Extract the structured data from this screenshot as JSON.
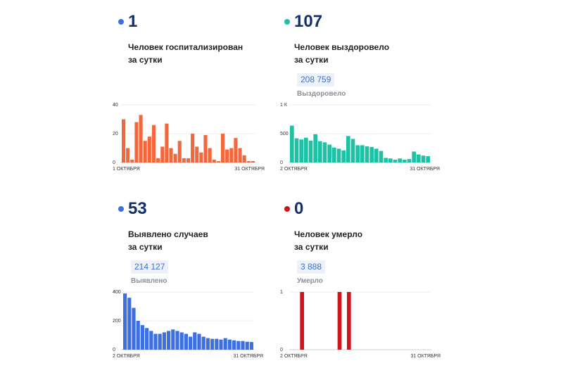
{
  "panels": [
    {
      "id": "hospitalized",
      "value": "1",
      "dot_color": "#3d6fe0",
      "line1": "Человек госпитализирован",
      "line2": "за сутки",
      "total": "",
      "total_label": ""
    },
    {
      "id": "recovered",
      "value": "107",
      "dot_color": "#1fc1a5",
      "line1": "Человек выздоровело",
      "line2": "за сутки",
      "total": "208 759",
      "total_label": "Выздоровело"
    },
    {
      "id": "cases",
      "value": "53",
      "dot_color": "#3d6fe0",
      "line1": "Выявлено случаев",
      "line2": "за сутки",
      "total": "214 127",
      "total_label": "Выявлено"
    },
    {
      "id": "deaths",
      "value": "0",
      "dot_color": "#d0141e",
      "line1": "Человек умерло",
      "line2": "за сутки",
      "total": "3 888",
      "total_label": "Умерло"
    }
  ],
  "chart_data": [
    {
      "type": "bar",
      "color": "#f2683c",
      "ylim": [
        0,
        40
      ],
      "yticks": [
        {
          "v": 0,
          "label": "0"
        },
        {
          "v": 20,
          "label": "20"
        },
        {
          "v": 40,
          "label": "40"
        }
      ],
      "x_start_label": "1 ОКТЯБРЯ",
      "x_end_label": "31 ОКТЯБРЯ",
      "values": [
        30,
        10,
        2,
        28,
        33,
        15,
        18,
        26,
        3,
        11,
        27,
        10,
        6,
        15,
        3,
        3,
        20,
        11,
        7,
        19,
        10,
        2,
        1,
        20,
        9,
        10,
        17,
        10,
        5,
        1,
        1
      ]
    },
    {
      "type": "bar",
      "color": "#1fc1a5",
      "ylim": [
        0,
        1000
      ],
      "yticks": [
        {
          "v": 0,
          "label": "0"
        },
        {
          "v": 500,
          "label": "500"
        },
        {
          "v": 1000,
          "label": "1 К"
        }
      ],
      "x_start_label": "2 ОКТЯБРЯ",
      "x_end_label": "31 ОКТЯБРЯ",
      "values": [
        640,
        420,
        400,
        430,
        380,
        490,
        370,
        350,
        310,
        260,
        240,
        210,
        460,
        410,
        300,
        300,
        280,
        270,
        240,
        200,
        80,
        70,
        50,
        70,
        50,
        60,
        190,
        140,
        120,
        110
      ]
    },
    {
      "type": "bar",
      "color": "#3d6fe0",
      "ylim": [
        0,
        400
      ],
      "yticks": [
        {
          "v": 0,
          "label": "0"
        },
        {
          "v": 200,
          "label": "200"
        },
        {
          "v": 400,
          "label": "400"
        }
      ],
      "x_start_label": "2 ОКТЯБРЯ",
      "x_end_label": "31 ОКТЯБРЯ",
      "values": [
        390,
        360,
        290,
        200,
        170,
        150,
        130,
        110,
        110,
        120,
        130,
        140,
        130,
        120,
        110,
        90,
        120,
        110,
        90,
        80,
        75,
        75,
        70,
        80,
        70,
        65,
        60,
        60,
        55,
        53
      ]
    },
    {
      "type": "bar",
      "color": "#d0141e",
      "ylim": [
        0,
        1
      ],
      "yticks": [
        {
          "v": 0,
          "label": "0"
        },
        {
          "v": 1,
          "label": "1"
        }
      ],
      "x_start_label": "2 ОКТЯБРЯ",
      "x_end_label": "31 ОКТЯБРЯ",
      "values": [
        0,
        0,
        1,
        0,
        0,
        0,
        0,
        0,
        0,
        0,
        1,
        0,
        1,
        0,
        0,
        0,
        0,
        0,
        0,
        0,
        0,
        0,
        0,
        0,
        0,
        0,
        0,
        0,
        0,
        0
      ]
    }
  ]
}
